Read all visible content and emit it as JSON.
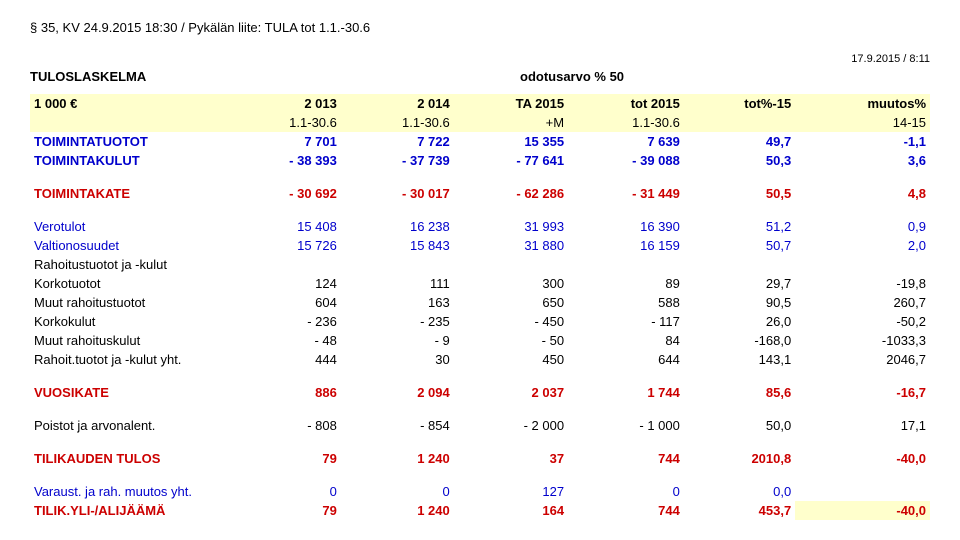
{
  "header": {
    "top": "§ 35, KV 24.9.2015 18:30 / Pykälän liite: TULA tot 1.1.-30.6",
    "date": "17.9.2015 / 8:11",
    "title_left": "TULOSLASKELMA",
    "title_right": "odotusarvo % 50"
  },
  "columns": {
    "c1": "1 000 €",
    "c2": "2 013",
    "c3": "2 014",
    "c4": "TA 2015",
    "c5": "tot 2015",
    "c6": "tot%-15",
    "c7": "muutos%",
    "s2": "1.1-30.6",
    "s3": "1.1-30.6",
    "s4": "+M",
    "s5": "1.1-30.6",
    "s7": "14-15"
  },
  "rows": [
    {
      "label": "TOIMINTATUOTOT",
      "v": [
        "7 701",
        "7 722",
        "15 355",
        "7 639",
        "49,7",
        "-1,1"
      ],
      "cls": "blue bold"
    },
    {
      "label": "TOIMINTAKULUT",
      "v": [
        "- 38 393",
        "- 37 739",
        "- 77 641",
        "- 39 088",
        "50,3",
        "3,6"
      ],
      "cls": "blue bold"
    },
    {
      "spacer": true
    },
    {
      "label": "TOIMINTAKATE",
      "v": [
        "- 30 692",
        "- 30 017",
        "- 62 286",
        "- 31 449",
        "50,5",
        "4,8"
      ],
      "cls": "red bold"
    },
    {
      "spacer": true
    },
    {
      "label": "Verotulot",
      "v": [
        "15 408",
        "16 238",
        "31 993",
        "16 390",
        "51,2",
        "0,9"
      ],
      "cls": "blue"
    },
    {
      "label": "Valtionosuudet",
      "v": [
        "15 726",
        "15 843",
        "31 880",
        "16 159",
        "50,7",
        "2,0"
      ],
      "cls": "blue"
    },
    {
      "label": "Rahoitustuotot ja -kulut",
      "v": [
        "",
        "",
        "",
        "",
        "",
        ""
      ],
      "cls": ""
    },
    {
      "label": "Korkotuotot",
      "v": [
        "124",
        "111",
        "300",
        "89",
        "29,7",
        "-19,8"
      ],
      "cls": ""
    },
    {
      "label": "Muut rahoitustuotot",
      "v": [
        "604",
        "163",
        "650",
        "588",
        "90,5",
        "260,7"
      ],
      "cls": ""
    },
    {
      "label": "Korkokulut",
      "v": [
        "- 236",
        "- 235",
        "- 450",
        "- 117",
        "26,0",
        "-50,2"
      ],
      "cls": ""
    },
    {
      "label": "Muut rahoituskulut",
      "v": [
        "- 48",
        "- 9",
        "- 50",
        "84",
        "-168,0",
        "-1033,3"
      ],
      "cls": ""
    },
    {
      "label": "Rahoit.tuotot ja -kulut yht.",
      "v": [
        "444",
        "30",
        "450",
        "644",
        "143,1",
        "2046,7"
      ],
      "cls": ""
    },
    {
      "spacer": true
    },
    {
      "label": "VUOSIKATE",
      "v": [
        "886",
        "2 094",
        "2 037",
        "1 744",
        "85,6",
        "-16,7"
      ],
      "cls": "red bold"
    },
    {
      "spacer": true
    },
    {
      "label": "Poistot ja arvonalent.",
      "v": [
        "- 808",
        "- 854",
        "- 2 000",
        "- 1 000",
        "50,0",
        "17,1"
      ],
      "cls": ""
    },
    {
      "spacer": true
    },
    {
      "label": "TILIKAUDEN TULOS",
      "v": [
        "79",
        "1 240",
        "37",
        "744",
        "2010,8",
        "-40,0"
      ],
      "cls": "red bold"
    },
    {
      "spacer": true
    },
    {
      "label": "Varaust. ja rah. muutos yht.",
      "v": [
        "0",
        "0",
        "127",
        "0",
        "0,0",
        ""
      ],
      "cls": "blue"
    },
    {
      "label": "TILIK.YLI-/ALIJÄÄMÄ",
      "v": [
        "79",
        "1 240",
        "164",
        "744",
        "453,7",
        "-40,0"
      ],
      "cls": "red bold",
      "yellow7": true
    }
  ]
}
